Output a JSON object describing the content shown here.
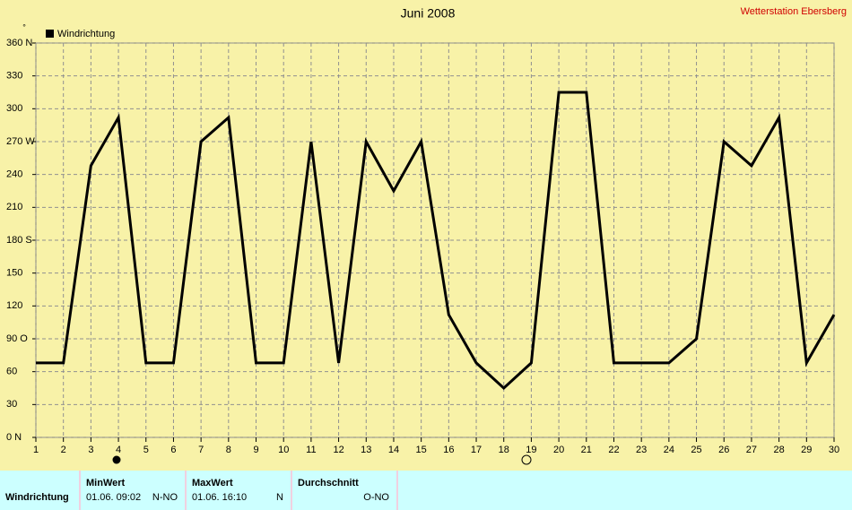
{
  "chart_data": {
    "type": "line",
    "title": "Juni 2008",
    "subtitle": "Wetterstation Ebersberg",
    "y_unit": "°",
    "x": [
      1,
      2,
      3,
      4,
      5,
      6,
      7,
      8,
      9,
      10,
      11,
      12,
      13,
      14,
      15,
      16,
      17,
      18,
      19,
      20,
      21,
      22,
      23,
      24,
      25,
      26,
      27,
      28,
      29,
      30
    ],
    "series": [
      {
        "name": "Windrichtung",
        "color": "#000000",
        "values": [
          68,
          68,
          248,
          292,
          68,
          68,
          270,
          292,
          68,
          68,
          270,
          68,
          270,
          225,
          270,
          112,
          68,
          45,
          68,
          315,
          315,
          68,
          68,
          68,
          90,
          270,
          248,
          292,
          68,
          112
        ]
      }
    ],
    "xlim": [
      1,
      30
    ],
    "xticks": [
      1,
      2,
      3,
      4,
      5,
      6,
      7,
      8,
      9,
      10,
      11,
      12,
      13,
      14,
      15,
      16,
      17,
      18,
      19,
      20,
      21,
      22,
      23,
      24,
      25,
      26,
      27,
      28,
      29,
      30
    ],
    "ylim": [
      0,
      360
    ],
    "yticks": [
      {
        "value": 0,
        "label": "0  N"
      },
      30,
      60,
      {
        "value": 90,
        "label": "90  O"
      },
      120,
      150,
      {
        "value": 180,
        "label": "180 S"
      },
      210,
      240,
      {
        "value": 270,
        "label": "270 W"
      },
      300,
      330,
      {
        "value": 360,
        "label": "360 N"
      }
    ],
    "grid": true
  },
  "table": {
    "row_label": "Windrichtung",
    "columns": [
      {
        "header": "MinWert",
        "date": "01.06.  09:02",
        "value": "N-NO"
      },
      {
        "header": "MaxWert",
        "date": "01.06.  16:10",
        "value": "N"
      },
      {
        "header": "Durchschnitt",
        "date": "",
        "value": "O-NO"
      }
    ]
  }
}
